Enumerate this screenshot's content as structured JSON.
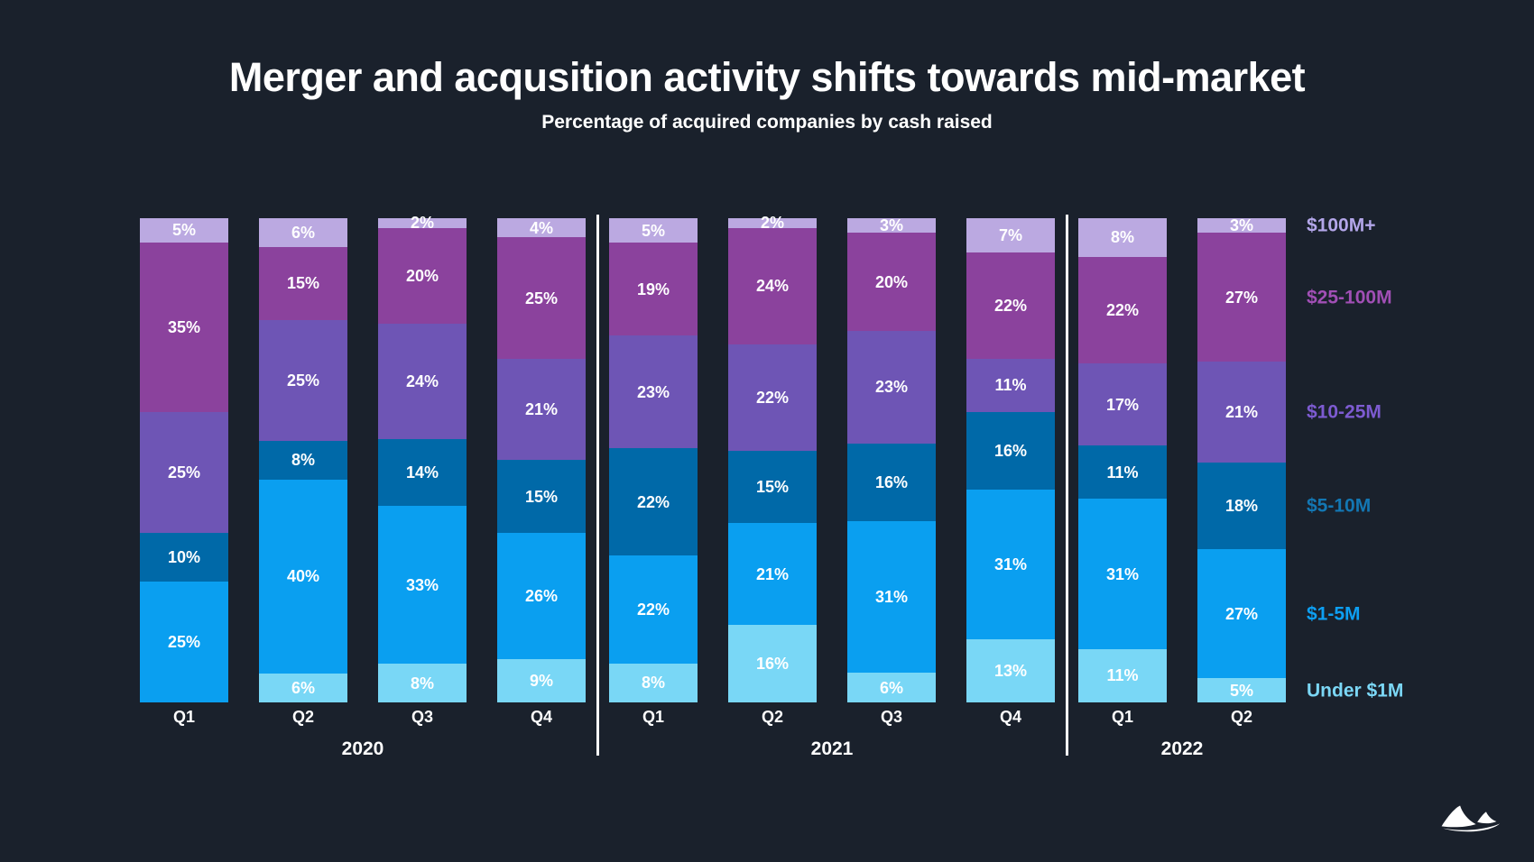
{
  "title": "Merger and acqusition activity shifts towards mid-market",
  "subtitle": "Percentage of acquired companies by cash raised",
  "background_color": "#1a212c",
  "text_color": "#ffffff",
  "chart_data": {
    "type": "bar",
    "stacked": true,
    "stack_order": "top-to-bottom",
    "unit": "%",
    "grid": false,
    "legend_position": "right",
    "groups": [
      {
        "year": "2020",
        "quarters": [
          "Q1",
          "Q2",
          "Q3",
          "Q4"
        ]
      },
      {
        "year": "2021",
        "quarters": [
          "Q1",
          "Q2",
          "Q3",
          "Q4"
        ]
      },
      {
        "year": "2022",
        "quarters": [
          "Q1",
          "Q2"
        ]
      }
    ],
    "categories": [
      "2020 Q1",
      "2020 Q2",
      "2020 Q3",
      "2020 Q4",
      "2021 Q1",
      "2021 Q2",
      "2021 Q3",
      "2021 Q4",
      "2022 Q1",
      "2022 Q2"
    ],
    "series": [
      {
        "name": "$100M+",
        "color": "#bba9e1",
        "label_color": "#b3a6e9",
        "values": [
          5,
          6,
          2,
          4,
          5,
          2,
          3,
          7,
          8,
          3
        ]
      },
      {
        "name": "$25-100M",
        "color": "#8b429d",
        "label_color": "#a14fb5",
        "values": [
          35,
          15,
          20,
          25,
          19,
          24,
          20,
          22,
          22,
          27
        ]
      },
      {
        "name": "$10-25M",
        "color": "#6e55b5",
        "label_color": "#7d5bd1",
        "values": [
          25,
          25,
          24,
          21,
          23,
          22,
          23,
          11,
          17,
          21
        ]
      },
      {
        "name": "$5-10M",
        "color": "#0069a8",
        "label_color": "#1377b3",
        "values": [
          10,
          8,
          14,
          15,
          22,
          15,
          16,
          16,
          11,
          18
        ]
      },
      {
        "name": "$1-5M",
        "color": "#0a9ff0",
        "label_color": "#0d9ff2",
        "values": [
          25,
          40,
          33,
          26,
          22,
          21,
          31,
          31,
          31,
          27
        ]
      },
      {
        "name": "Under $1M",
        "color": "#79d7f6",
        "label_color": "#7bd7f6",
        "values": [
          0,
          6,
          8,
          9,
          8,
          16,
          6,
          13,
          11,
          5
        ]
      }
    ]
  }
}
